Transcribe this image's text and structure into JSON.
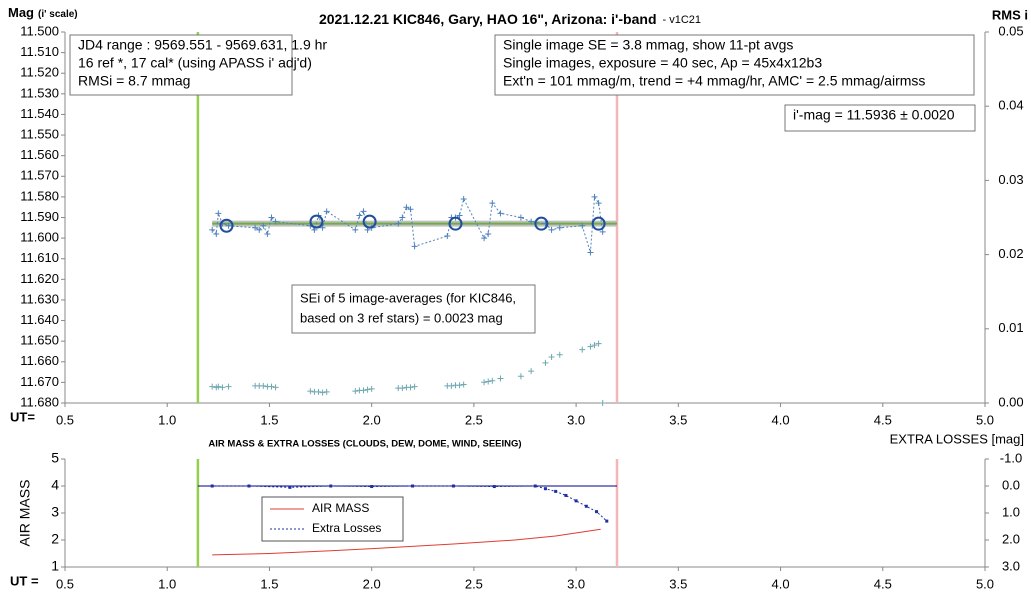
{
  "chart_data": [
    {
      "type": "scatter",
      "title": "2021.12.21 KIC846, Gary, HAO 16\", Arizona: i'-band",
      "subtitle": "- v1C21",
      "ylabel": "Mag",
      "ylabel_note": "(i' scale)",
      "y2label": "RMS i",
      "xlabel": "UT=",
      "xlim": [
        0.5,
        5.0
      ],
      "xticks": [
        0.5,
        {
          "value": 1.0,
          "label": "1.0"
        },
        1.5,
        {
          "value": 2.0,
          "label": "2.0"
        },
        2.5,
        {
          "value": 3.0,
          "label": "3.0"
        },
        3.5,
        {
          "value": 4.0,
          "label": "4.0"
        },
        4.5,
        {
          "value": 5.0,
          "label": "5.0"
        }
      ],
      "ylim": [
        11.5,
        11.68
      ],
      "y_inverted": true,
      "yticks": [
        {
          "value": 11.5,
          "label": "11.500"
        },
        {
          "value": 11.51,
          "label": "11.510"
        },
        {
          "value": 11.52,
          "label": "11.520"
        },
        {
          "value": 11.53,
          "label": "11.530"
        },
        {
          "value": 11.54,
          "label": "11.540"
        },
        {
          "value": 11.55,
          "label": "11.550"
        },
        {
          "value": 11.56,
          "label": "11.560"
        },
        {
          "value": 11.57,
          "label": "11.570"
        },
        {
          "value": 11.58,
          "label": "11.580"
        },
        {
          "value": 11.59,
          "label": "11.590"
        },
        {
          "value": 11.6,
          "label": "11.600"
        },
        {
          "value": 11.61,
          "label": "11.610"
        },
        {
          "value": 11.62,
          "label": "11.620"
        },
        {
          "value": 11.63,
          "label": "11.630"
        },
        {
          "value": 11.64,
          "label": "11.640"
        },
        {
          "value": 11.65,
          "label": "11.650"
        },
        {
          "value": 11.66,
          "label": "11.660"
        },
        {
          "value": 11.67,
          "label": "11.670"
        },
        {
          "value": 11.68,
          "label": "11.680"
        }
      ],
      "y2lim": [
        0,
        0.05
      ],
      "y2ticks": [
        {
          "value": 0,
          "label": "0.00"
        },
        0.01,
        0.02,
        0.03,
        0.04,
        0.05
      ],
      "vlines": [
        {
          "x": 1.15,
          "color": "#92d050"
        },
        {
          "x": 3.2,
          "color": "#f4b6b6"
        }
      ],
      "series": [
        {
          "color": "#c0c0c0",
          "line": "solid",
          "width": 6,
          "x": [
            1.22,
            3.2
          ],
          "values": [
            11.593,
            11.593
          ]
        },
        {
          "color": "#70ad47",
          "line": "solid",
          "width": 2,
          "x": [
            1.22,
            3.2
          ],
          "values": [
            11.593,
            11.593
          ]
        },
        {
          "color": "#4f81bd",
          "line": "dotted",
          "marker": "cross",
          "width": 1,
          "x": [
            1.22,
            1.24,
            1.25,
            1.27,
            1.3,
            1.43,
            1.45,
            1.47,
            1.49,
            1.51,
            1.53,
            1.7,
            1.72,
            1.74,
            1.76,
            1.78,
            1.92,
            1.94,
            1.96,
            1.98,
            2.0,
            2.13,
            2.15,
            2.17,
            2.19,
            2.21,
            2.37,
            2.39,
            2.41,
            2.43,
            2.45,
            2.55,
            2.57,
            2.59,
            2.63,
            2.73,
            2.78,
            2.85,
            2.88,
            2.92,
            3.03,
            3.07,
            3.09,
            3.11,
            3.13
          ],
          "values": [
            11.596,
            11.598,
            11.588,
            11.593,
            11.594,
            11.595,
            11.596,
            11.594,
            11.598,
            11.59,
            11.592,
            11.594,
            11.596,
            11.589,
            11.595,
            11.587,
            11.596,
            11.589,
            11.587,
            11.596,
            11.595,
            11.593,
            11.59,
            11.585,
            11.586,
            11.604,
            11.599,
            11.59,
            11.59,
            11.589,
            11.581,
            11.6,
            11.598,
            11.583,
            11.588,
            11.59,
            11.592,
            11.593,
            11.596,
            11.595,
            11.594,
            11.607,
            11.58,
            11.583,
            11.597
          ]
        },
        {
          "color": "#1f4e9c",
          "marker": "circle",
          "x": [
            1.29,
            1.73,
            1.99,
            2.41,
            2.83,
            3.11
          ],
          "values": [
            11.594,
            11.592,
            11.592,
            11.593,
            11.593,
            11.593
          ]
        },
        {
          "color": "#6fa8b0",
          "marker": "cross",
          "axis": "y2",
          "x": [
            1.22,
            1.24,
            1.25,
            1.27,
            1.3,
            1.43,
            1.45,
            1.47,
            1.49,
            1.51,
            1.53,
            1.7,
            1.72,
            1.74,
            1.76,
            1.78,
            1.92,
            1.94,
            1.96,
            1.98,
            2.0,
            2.13,
            2.15,
            2.17,
            2.19,
            2.21,
            2.37,
            2.39,
            2.41,
            2.43,
            2.45,
            2.55,
            2.57,
            2.59,
            2.63,
            2.73,
            2.78,
            2.85,
            2.88,
            2.92,
            3.03,
            3.07,
            3.09,
            3.11,
            3.13
          ],
          "values": [
            0.0022,
            0.0021,
            0.0022,
            0.0021,
            0.0022,
            0.0023,
            0.0023,
            0.0023,
            0.0022,
            0.0022,
            0.0021,
            0.0016,
            0.0015,
            0.0015,
            0.0014,
            0.0015,
            0.0016,
            0.0017,
            0.0017,
            0.0018,
            0.0019,
            0.002,
            0.002,
            0.0021,
            0.0021,
            0.0022,
            0.0023,
            0.0023,
            0.0024,
            0.0024,
            0.0025,
            0.0028,
            0.0029,
            0.003,
            0.0033,
            0.0036,
            0.0043,
            0.0054,
            0.0062,
            0.0065,
            0.0072,
            0.0076,
            0.0078,
            0.008,
            0.0
          ]
        }
      ],
      "annotations": [
        [
          "JD4 range : 9569.551 - 9569.631, 1.9  hr",
          "16 ref *, 17 cal* (using APASS i' adj'd)",
          "RMSi = 8.7 mmag"
        ],
        [
          "Single image SE = 3.8 mmag, show 11-pt avgs",
          "Single images, exposure = 40 sec, Ap = 45x4x12b3",
          "Ext'n = 101 mmag/m, trend = +4 mmag/hr, AMC' = 2.5 mmag/airmss"
        ],
        [
          "i'-mag = 11.5936 ± 0.0020"
        ],
        [
          "SEi of 5 image-averages (for KIC846,",
          "based on 3 ref stars) = 0.0023 mag"
        ]
      ]
    },
    {
      "type": "line",
      "title": "AIR MASS & EXTRA LOSSES (CLOUDS, DEW, DOME, WIND, SEEING)",
      "ylabel": "AIR MASS",
      "y2label": "EXTRA LOSSES [mag]",
      "xlabel": "UT =",
      "xlim": [
        0.5,
        5.0
      ],
      "xticks": [
        0.5,
        {
          "value": 1.0,
          "label": "1.0"
        },
        1.5,
        {
          "value": 2.0,
          "label": "2.0"
        },
        2.5,
        {
          "value": 3.0,
          "label": "3.0"
        },
        3.5,
        {
          "value": 4.0,
          "label": "4.0"
        },
        4.5,
        {
          "value": 5.0,
          "label": "5.0"
        }
      ],
      "ylim": [
        1,
        5
      ],
      "yticks": [
        1,
        2,
        3,
        4,
        5
      ],
      "y2lim": [
        -1.0,
        3.0
      ],
      "y2_inverted": true,
      "y2ticks": [
        {
          "value": -1.0,
          "label": "-1.0"
        },
        {
          "value": 0.0,
          "label": "0.0"
        },
        {
          "value": 1.0,
          "label": "1.0"
        },
        {
          "value": 2.0,
          "label": "2.0"
        },
        {
          "value": 3.0,
          "label": "3.0"
        }
      ],
      "vlines": [
        {
          "x": 1.15,
          "color": "#92d050"
        },
        {
          "x": 3.2,
          "color": "#f4b6b6"
        }
      ],
      "legend": "inside",
      "series": [
        {
          "color": "#00008b",
          "line": "solid",
          "width": 1,
          "axis": "y2",
          "x": [
            1.15,
            3.2
          ],
          "values": [
            0.0,
            0.0
          ]
        },
        {
          "name": "AIR MASS",
          "color": "#e03c31",
          "line": "solid",
          "width": 1,
          "x": [
            1.22,
            1.5,
            1.8,
            2.1,
            2.4,
            2.7,
            2.9,
            3.12
          ],
          "values": [
            1.45,
            1.5,
            1.6,
            1.72,
            1.85,
            2.0,
            2.15,
            2.4
          ]
        },
        {
          "name": "Extra Losses",
          "color": "#1f2fa0",
          "line": "dotted",
          "marker": "dot",
          "width": 1,
          "axis": "y2",
          "x": [
            1.22,
            1.4,
            1.6,
            1.8,
            2.0,
            2.2,
            2.4,
            2.6,
            2.8,
            2.85,
            2.9,
            2.95,
            3.0,
            3.05,
            3.1,
            3.15
          ],
          "values": [
            0.0,
            0.0,
            0.05,
            0.0,
            0.02,
            0.0,
            0.0,
            0.02,
            0.0,
            0.1,
            0.2,
            0.35,
            0.55,
            0.75,
            0.95,
            1.3
          ]
        }
      ]
    }
  ]
}
